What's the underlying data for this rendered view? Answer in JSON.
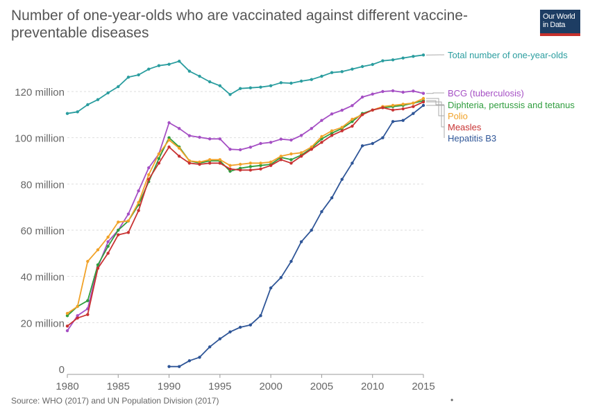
{
  "title": "Number of one-year-olds who are vaccinated against different vaccine-preventable diseases",
  "logo_text": "Our World in Data",
  "source": "Source: WHO (2017) and UN Population Division (2017)",
  "footer_mark": "•",
  "chart_data": {
    "type": "line",
    "title": "Number of one-year-olds who are vaccinated against different vaccine-preventable diseases",
    "xlabel": "",
    "ylabel": "",
    "xlim": [
      1980,
      2015
    ],
    "ylim": [
      0,
      130000000
    ],
    "x_ticks": [
      1980,
      1985,
      1990,
      1995,
      2000,
      2005,
      2010,
      2015
    ],
    "x_tick_labels": [
      "1980",
      "1985",
      "1990",
      "1995",
      "2000",
      "2005",
      "2010",
      "2015"
    ],
    "y_ticks": [
      0,
      20000000,
      40000000,
      60000000,
      80000000,
      100000000,
      120000000
    ],
    "y_tick_labels": [
      "0",
      "20 million",
      "40 million",
      "60 million",
      "80 million",
      "100 million",
      "120 million"
    ],
    "grid": "horizontal dashed",
    "legend": "line-end labels, right",
    "series": [
      {
        "name": "Total number of one-year-olds",
        "color": "#2a9d9f",
        "x": [
          1980,
          1981,
          1982,
          1983,
          1984,
          1985,
          1986,
          1987,
          1988,
          1989,
          1990,
          1991,
          1992,
          1993,
          1994,
          1995,
          1996,
          1997,
          1998,
          1999,
          2000,
          2001,
          2002,
          2003,
          2004,
          2005,
          2006,
          2007,
          2008,
          2009,
          2010,
          2011,
          2012,
          2013,
          2014,
          2015
        ],
        "y": [
          110500000,
          111200000,
          114300000,
          116500000,
          119400000,
          122100000,
          126200000,
          127200000,
          129700000,
          131200000,
          131800000,
          133100000,
          128800000,
          126600000,
          124200000,
          122500000,
          118700000,
          121300000,
          121600000,
          121900000,
          122500000,
          123800000,
          123600000,
          124500000,
          125200000,
          126600000,
          128200000,
          128600000,
          129700000,
          130800000,
          131700000,
          133300000,
          133700000,
          134500000,
          135200000,
          135800000
        ]
      },
      {
        "name": "BCG (tuberculosis)",
        "color": "#a54fc4",
        "x": [
          1980,
          1981,
          1982,
          1983,
          1984,
          1985,
          1986,
          1987,
          1988,
          1989,
          1990,
          1991,
          1992,
          1993,
          1994,
          1995,
          1996,
          1997,
          1998,
          1999,
          2000,
          2001,
          2002,
          2003,
          2004,
          2005,
          2006,
          2007,
          2008,
          2009,
          2010,
          2011,
          2012,
          2013,
          2014,
          2015
        ],
        "y": [
          16500000,
          23000000,
          26000000,
          44000000,
          55000000,
          60000000,
          67000000,
          77000000,
          87000000,
          93000000,
          106500000,
          104000000,
          100900000,
          100200000,
          99500000,
          99500000,
          95000000,
          94800000,
          95900000,
          97500000,
          98000000,
          99400000,
          99000000,
          101000000,
          104000000,
          107500000,
          110300000,
          111900000,
          113900000,
          117600000,
          118900000,
          120000000,
          120300000,
          119700000,
          120200000,
          119200000
        ]
      },
      {
        "name": "Diphteria, pertussis and tetanus",
        "color": "#2f9d3e",
        "x": [
          1980,
          1981,
          1982,
          1983,
          1984,
          1985,
          1986,
          1987,
          1988,
          1989,
          1990,
          1991,
          1992,
          1993,
          1994,
          1995,
          1996,
          1997,
          1998,
          1999,
          2000,
          2001,
          2002,
          2003,
          2004,
          2005,
          2006,
          2007,
          2008,
          2009,
          2010,
          2011,
          2012,
          2013,
          2014,
          2015
        ],
        "y": [
          23000000,
          27000000,
          29500000,
          45000000,
          53000000,
          60000000,
          64000000,
          71000000,
          81000000,
          91000000,
          100000000,
          96000000,
          90000000,
          89000000,
          90000000,
          90000000,
          85500000,
          86800000,
          87500000,
          88000000,
          88500000,
          91500000,
          90500000,
          92500000,
          95500000,
          99500000,
          102000000,
          104000000,
          107000000,
          110500000,
          112000000,
          113000000,
          113500000,
          114000000,
          115000000,
          116000000
        ]
      },
      {
        "name": "Polio",
        "color": "#f1a228",
        "x": [
          1980,
          1981,
          1982,
          1983,
          1984,
          1985,
          1986,
          1987,
          1988,
          1989,
          1990,
          1991,
          1992,
          1993,
          1994,
          1995,
          1996,
          1997,
          1998,
          1999,
          2000,
          2001,
          2002,
          2003,
          2004,
          2005,
          2006,
          2007,
          2008,
          2009,
          2010,
          2011,
          2012,
          2013,
          2014,
          2015
        ],
        "y": [
          24000000,
          27000000,
          46500000,
          51500000,
          57000000,
          63500000,
          64000000,
          72000000,
          84000000,
          93000000,
          99000000,
          95500000,
          90000000,
          89500000,
          90500000,
          90500000,
          88000000,
          88500000,
          89000000,
          89000000,
          89500000,
          92000000,
          93000000,
          93500000,
          96000000,
          100500000,
          103000000,
          104500000,
          108000000,
          110000000,
          112000000,
          113500000,
          114000000,
          114500000,
          115000000,
          117000000
        ]
      },
      {
        "name": "Measles",
        "color": "#c83232",
        "x": [
          1980,
          1981,
          1982,
          1983,
          1984,
          1985,
          1986,
          1987,
          1988,
          1989,
          1990,
          1991,
          1992,
          1993,
          1994,
          1995,
          1996,
          1997,
          1998,
          1999,
          2000,
          2001,
          2002,
          2003,
          2004,
          2005,
          2006,
          2007,
          2008,
          2009,
          2010,
          2011,
          2012,
          2013,
          2014,
          2015
        ],
        "y": [
          18500000,
          22000000,
          23500000,
          43500000,
          50000000,
          58000000,
          59000000,
          68500000,
          82000000,
          89000000,
          96000000,
          92000000,
          89000000,
          88500000,
          89000000,
          89000000,
          86500000,
          86000000,
          86000000,
          86500000,
          88000000,
          90500000,
          89000000,
          92000000,
          95000000,
          98000000,
          101000000,
          103000000,
          105000000,
          110000000,
          112000000,
          113000000,
          112000000,
          112500000,
          113500000,
          115500000
        ]
      },
      {
        "name": "Hepatitis B3",
        "color": "#2e5597",
        "x": [
          1990,
          1991,
          1992,
          1993,
          1994,
          1995,
          1996,
          1997,
          1998,
          1999,
          2000,
          2001,
          2002,
          2003,
          2004,
          2005,
          2006,
          2007,
          2008,
          2009,
          2010,
          2011,
          2012,
          2013,
          2014,
          2015
        ],
        "y": [
          1000000,
          1000000,
          3500000,
          5000000,
          9500000,
          13000000,
          16000000,
          18000000,
          19000000,
          23000000,
          35000000,
          39500000,
          46500000,
          55000000,
          60000000,
          68000000,
          74000000,
          82000000,
          89000000,
          96500000,
          97500000,
          100000000,
          107000000,
          107500000,
          110500000,
          114000000
        ]
      }
    ]
  }
}
